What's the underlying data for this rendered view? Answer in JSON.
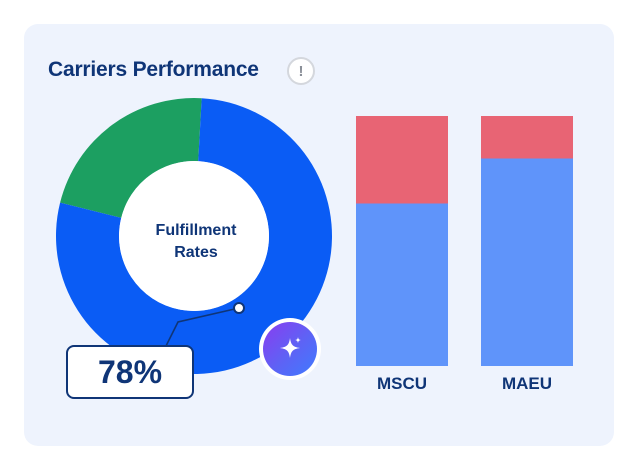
{
  "card": {
    "title": "Carriers Performance",
    "info_glyph": "!"
  },
  "donut": {
    "center_label_line1": "Fulfillment",
    "center_label_line2": "Rates",
    "value_display": "78%",
    "value_percent": 78,
    "colors": {
      "primary": "#0a5cf5",
      "secondary": "#1c9f61"
    }
  },
  "sparkle": {
    "icon": "sparkle-icon"
  },
  "chart_data": {
    "type": "bar",
    "stacked": true,
    "categories": [
      "MSCU",
      "MAEU"
    ],
    "series": [
      {
        "values": [
          65,
          83
        ],
        "color": "#5f94fa"
      },
      {
        "values": [
          35,
          17
        ],
        "color": "#e86474"
      }
    ],
    "ylim": [
      0,
      100
    ]
  }
}
